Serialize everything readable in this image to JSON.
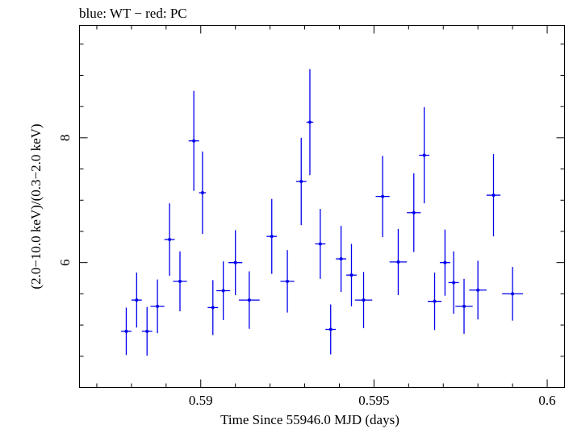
{
  "chart_data": {
    "type": "scatter",
    "title": "blue: WT − red: PC",
    "xlabel": "Time Since 55946.0 MJD (days)",
    "ylabel": "(2.0−10.0 keV)/(0.3−2.0 keV)",
    "xlim": [
      0.5865,
      0.6005
    ],
    "ylim": [
      4.0,
      9.8
    ],
    "x_major_ticks": [
      0.59,
      0.595,
      0.6
    ],
    "x_tick_labels": [
      "0.59",
      "0.595",
      "0.6"
    ],
    "x_minor_step": 0.001,
    "y_major_ticks": [
      6,
      8
    ],
    "y_tick_labels": [
      "6",
      "8"
    ],
    "y_minor_step": 0.5,
    "grid": false,
    "colors": {
      "series": "#0000ee",
      "axes": "#000000"
    },
    "series": [
      {
        "color": "#0000ee",
        "points": [
          {
            "x": 0.58785,
            "xerr": 0.00015,
            "y": 4.9,
            "yerr": 0.38
          },
          {
            "x": 0.58815,
            "xerr": 0.00015,
            "y": 5.4,
            "yerr": 0.44
          },
          {
            "x": 0.58845,
            "xerr": 0.00015,
            "y": 4.9,
            "yerr": 0.39
          },
          {
            "x": 0.58875,
            "xerr": 0.0002,
            "y": 5.3,
            "yerr": 0.43
          },
          {
            "x": 0.5891,
            "xerr": 0.00015,
            "y": 6.37,
            "yerr": 0.58
          },
          {
            "x": 0.5894,
            "xerr": 0.0002,
            "y": 5.7,
            "yerr": 0.48
          },
          {
            "x": 0.5898,
            "xerr": 0.00015,
            "y": 7.95,
            "yerr": 0.8
          },
          {
            "x": 0.59005,
            "xerr": 0.0001,
            "y": 7.12,
            "yerr": 0.66
          },
          {
            "x": 0.59035,
            "xerr": 0.00015,
            "y": 5.28,
            "yerr": 0.44
          },
          {
            "x": 0.59065,
            "xerr": 0.0002,
            "y": 5.55,
            "yerr": 0.47
          },
          {
            "x": 0.591,
            "xerr": 0.0002,
            "y": 6.0,
            "yerr": 0.52
          },
          {
            "x": 0.5914,
            "xerr": 0.0003,
            "y": 5.4,
            "yerr": 0.46
          },
          {
            "x": 0.59205,
            "xerr": 0.00015,
            "y": 6.42,
            "yerr": 0.6
          },
          {
            "x": 0.5925,
            "xerr": 0.0002,
            "y": 5.7,
            "yerr": 0.5
          },
          {
            "x": 0.5929,
            "xerr": 0.00015,
            "y": 7.3,
            "yerr": 0.7
          },
          {
            "x": 0.59315,
            "xerr": 0.0001,
            "y": 8.25,
            "yerr": 0.85
          },
          {
            "x": 0.59345,
            "xerr": 0.00015,
            "y": 6.3,
            "yerr": 0.56
          },
          {
            "x": 0.59375,
            "xerr": 0.00015,
            "y": 4.93,
            "yerr": 0.4
          },
          {
            "x": 0.59405,
            "xerr": 0.00015,
            "y": 6.06,
            "yerr": 0.53
          },
          {
            "x": 0.59435,
            "xerr": 0.00015,
            "y": 5.8,
            "yerr": 0.5
          },
          {
            "x": 0.5947,
            "xerr": 0.00025,
            "y": 5.4,
            "yerr": 0.45
          },
          {
            "x": 0.59525,
            "xerr": 0.0002,
            "y": 7.06,
            "yerr": 0.65
          },
          {
            "x": 0.5957,
            "xerr": 0.00025,
            "y": 6.01,
            "yerr": 0.53
          },
          {
            "x": 0.59615,
            "xerr": 0.0002,
            "y": 6.8,
            "yerr": 0.63
          },
          {
            "x": 0.59645,
            "xerr": 0.00015,
            "y": 7.72,
            "yerr": 0.77
          },
          {
            "x": 0.59675,
            "xerr": 0.0002,
            "y": 5.38,
            "yerr": 0.46
          },
          {
            "x": 0.59705,
            "xerr": 0.00015,
            "y": 6.0,
            "yerr": 0.53
          },
          {
            "x": 0.5973,
            "xerr": 0.00015,
            "y": 5.68,
            "yerr": 0.5
          },
          {
            "x": 0.5976,
            "xerr": 0.00025,
            "y": 5.3,
            "yerr": 0.44
          },
          {
            "x": 0.598,
            "xerr": 0.00025,
            "y": 5.56,
            "yerr": 0.47
          },
          {
            "x": 0.59845,
            "xerr": 0.0002,
            "y": 7.08,
            "yerr": 0.66
          },
          {
            "x": 0.599,
            "xerr": 0.0003,
            "y": 5.5,
            "yerr": 0.43
          }
        ]
      }
    ]
  }
}
